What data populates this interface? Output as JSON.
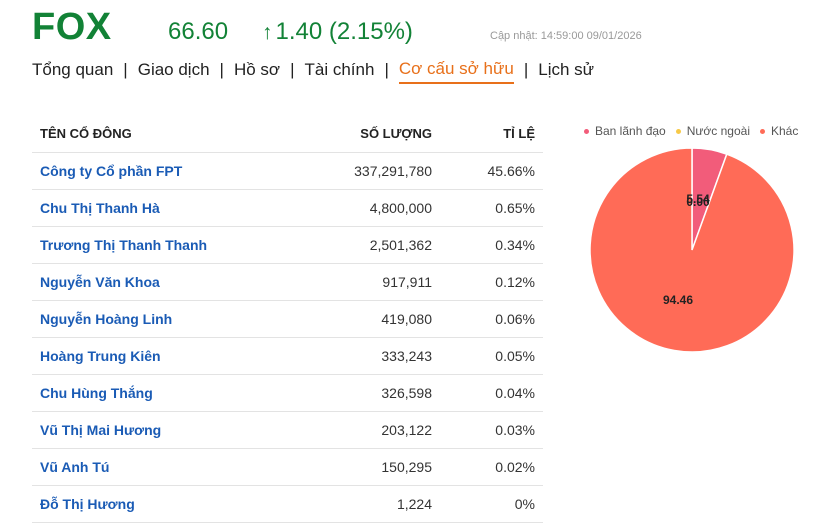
{
  "header": {
    "ticker": "FOX",
    "price": "66.60",
    "change_arrow": "↑",
    "change": "1.40 (2.15%)",
    "updated": "Cập nhật: 14:59:00 09/01/2026"
  },
  "tabs": [
    {
      "label": "Tổng quan"
    },
    {
      "label": "Giao dịch"
    },
    {
      "label": "Hồ sơ"
    },
    {
      "label": "Tài chính"
    },
    {
      "label": "Cơ cấu sở hữu"
    },
    {
      "label": "Lịch sử"
    }
  ],
  "active_tab": "Cơ cấu sở hữu",
  "table": {
    "headers": {
      "name": "TÊN CỔ ĐÔNG",
      "qty": "SỐ LƯỢNG",
      "pct": "TỈ LỆ"
    },
    "rows": [
      {
        "name": "Công ty Cổ phần FPT",
        "qty": "337,291,780",
        "pct": "45.66%"
      },
      {
        "name": "Chu Thị Thanh Hà",
        "qty": "4,800,000",
        "pct": "0.65%"
      },
      {
        "name": "Trương Thị Thanh Thanh",
        "qty": "2,501,362",
        "pct": "0.34%"
      },
      {
        "name": "Nguyễn Văn Khoa",
        "qty": "917,911",
        "pct": "0.12%"
      },
      {
        "name": "Nguyễn Hoàng Linh",
        "qty": "419,080",
        "pct": "0.06%"
      },
      {
        "name": "Hoàng Trung Kiên",
        "qty": "333,243",
        "pct": "0.05%"
      },
      {
        "name": "Chu Hùng Thắng",
        "qty": "326,598",
        "pct": "0.04%"
      },
      {
        "name": "Vũ Thị Mai Hương",
        "qty": "203,122",
        "pct": "0.03%"
      },
      {
        "name": "Vũ Anh Tú",
        "qty": "150,295",
        "pct": "0.02%"
      },
      {
        "name": "Đỗ Thị Hương",
        "qty": "1,224",
        "pct": "0%"
      }
    ]
  },
  "chart_data": {
    "type": "pie",
    "labels": [
      "Ban lãnh đạo",
      "Nước ngoài",
      "Khác"
    ],
    "values": [
      5.54,
      0.0,
      94.46
    ],
    "value_labels": [
      "5.54",
      "0.00",
      "94.46"
    ],
    "colors": [
      "#f25c7a",
      "#f7c948",
      "#ff6b57"
    ],
    "legend_position": "top"
  },
  "colors": {
    "up": "#128236",
    "active_tab": "#e8701a",
    "link": "#1a5bb5"
  }
}
